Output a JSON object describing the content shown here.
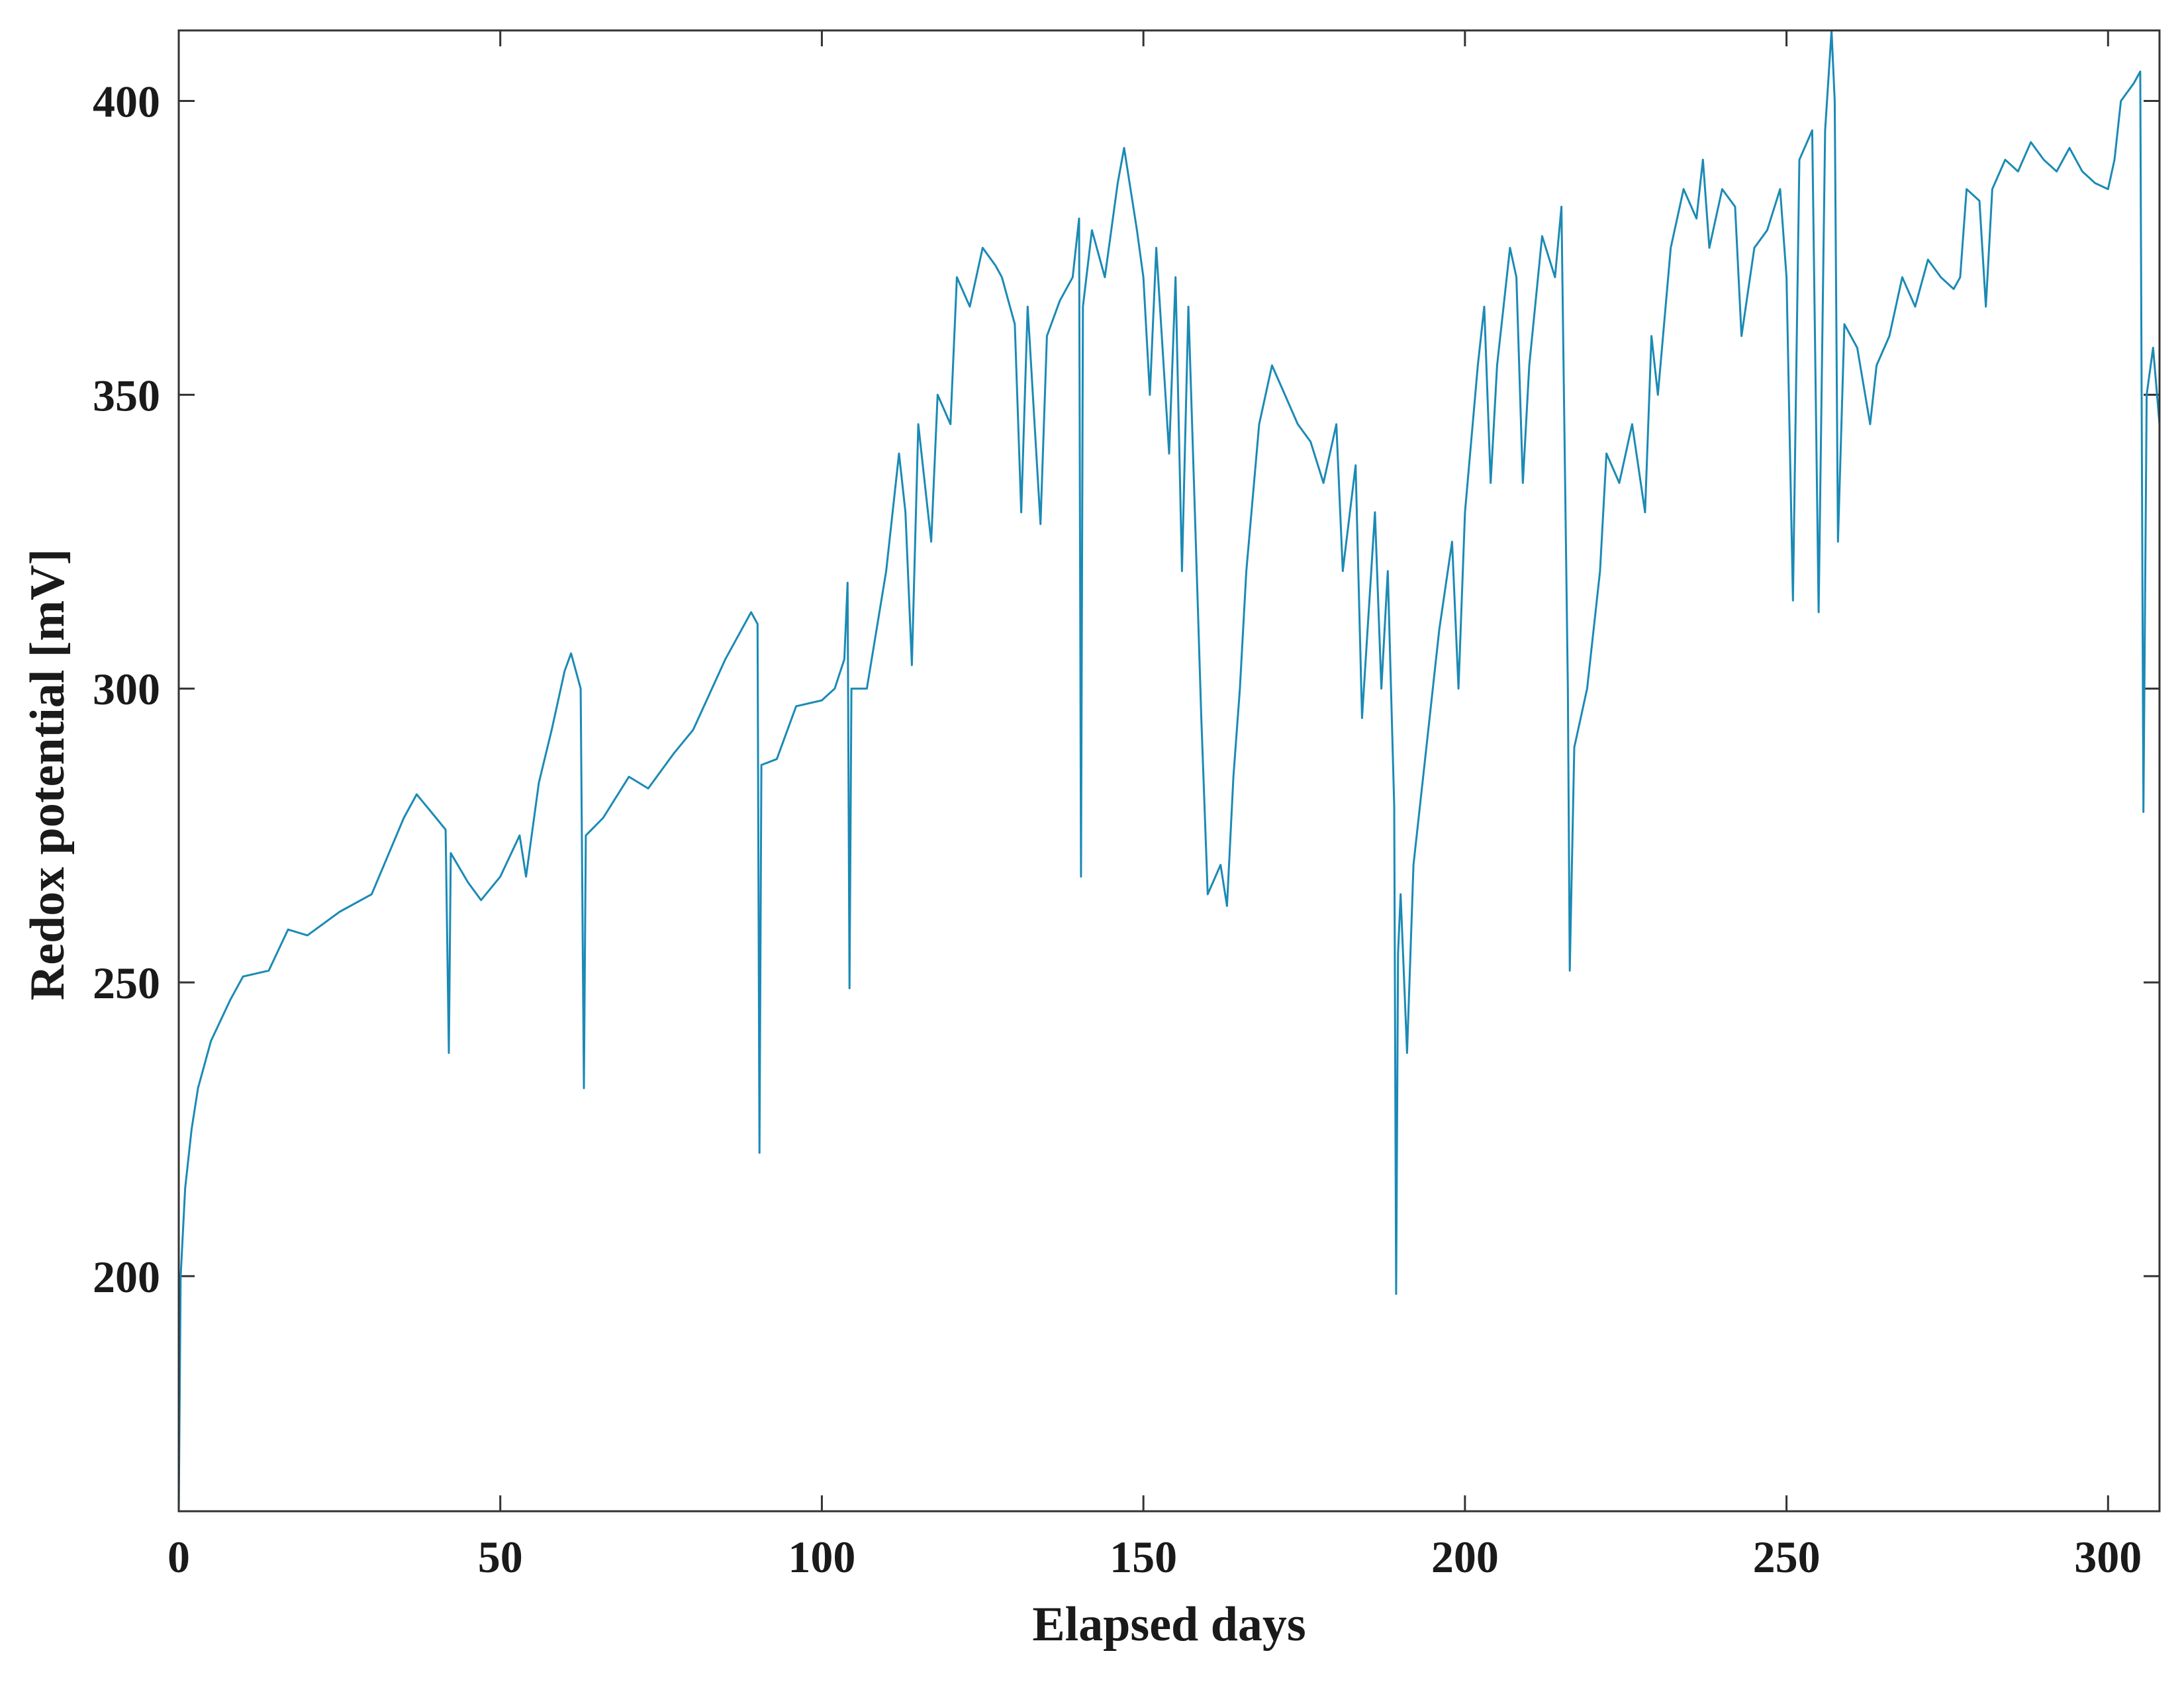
{
  "chart_data": {
    "type": "line",
    "xlabel": "Elapsed days",
    "ylabel": "Redox potential [mV]",
    "xlim": [
      0,
      308
    ],
    "ylim": [
      160,
      412
    ],
    "xticks": [
      0,
      50,
      100,
      150,
      200,
      250,
      300
    ],
    "yticks": [
      200,
      250,
      300,
      350,
      400
    ],
    "grid": false,
    "x": [
      0,
      0.3,
      1,
      2,
      3,
      5,
      8,
      10,
      14,
      17,
      20,
      25,
      30,
      35,
      37,
      40,
      41.5,
      42,
      42.3,
      45,
      47,
      50,
      53,
      54,
      56,
      58,
      60,
      61,
      62,
      62.5,
      63,
      63.3,
      66,
      70,
      73,
      77,
      80,
      85,
      89,
      90,
      90.3,
      90.6,
      93,
      96,
      100,
      102,
      103.5,
      104,
      104.3,
      104.6,
      107,
      110,
      112,
      113,
      114,
      115,
      117,
      118,
      120,
      121,
      123,
      125,
      127,
      128,
      130,
      131,
      132,
      134,
      135,
      137,
      139,
      140,
      140.3,
      140.6,
      142,
      144,
      146,
      147,
      149,
      150,
      151,
      152,
      154,
      155,
      156,
      157,
      158,
      159,
      160,
      162,
      163,
      164,
      165,
      166,
      168,
      170,
      172,
      174,
      176,
      178,
      180,
      181,
      183,
      184,
      186,
      187,
      188,
      189,
      189.3,
      189.6,
      190,
      191,
      192,
      194,
      196,
      198,
      199,
      200,
      202,
      203,
      204,
      205,
      207,
      208,
      209,
      210,
      212,
      214,
      215,
      216,
      216.3,
      217,
      219,
      221,
      222,
      224,
      226,
      228,
      229,
      230,
      232,
      234,
      236,
      237,
      238,
      240,
      242,
      243,
      245,
      247,
      249,
      250,
      251,
      252,
      254,
      255,
      256,
      257,
      257.5,
      258,
      259,
      261,
      263,
      264,
      266,
      268,
      270,
      272,
      274,
      276,
      277,
      278,
      280,
      281,
      282,
      284,
      286,
      288,
      290,
      292,
      294,
      296,
      298,
      300,
      301,
      302,
      304,
      305,
      305.5,
      306,
      307,
      308
    ],
    "series": [
      {
        "color": "#1b8ab5",
        "values": [
          160,
          200,
          215,
          225,
          232,
          240,
          247,
          251,
          252,
          259,
          258,
          262,
          265,
          278,
          282,
          278,
          276,
          238,
          272,
          267,
          264,
          268,
          275,
          268,
          284,
          293,
          303,
          306,
          302,
          300,
          232,
          275,
          278,
          285,
          283,
          289,
          293,
          305,
          313,
          311,
          221,
          287,
          288,
          297,
          298,
          300,
          305,
          318,
          249,
          300,
          300,
          320,
          340,
          330,
          304,
          345,
          325,
          350,
          345,
          370,
          365,
          375,
          372,
          370,
          362,
          330,
          365,
          328,
          360,
          366,
          370,
          380,
          268,
          365,
          378,
          370,
          386,
          392,
          378,
          370,
          350,
          375,
          340,
          370,
          320,
          365,
          330,
          295,
          265,
          270,
          263,
          285,
          300,
          320,
          345,
          355,
          350,
          345,
          342,
          335,
          345,
          320,
          338,
          295,
          330,
          300,
          320,
          280,
          197,
          255,
          265,
          238,
          270,
          290,
          310,
          325,
          300,
          330,
          355,
          365,
          335,
          355,
          375,
          370,
          335,
          355,
          377,
          370,
          382,
          300,
          252,
          290,
          300,
          320,
          340,
          335,
          345,
          330,
          360,
          350,
          375,
          385,
          380,
          390,
          375,
          385,
          382,
          360,
          375,
          378,
          385,
          370,
          315,
          390,
          395,
          313,
          395,
          412,
          400,
          325,
          362,
          358,
          345,
          355,
          360,
          370,
          365,
          373,
          370,
          368,
          370,
          385,
          383,
          365,
          385,
          390,
          388,
          393,
          390,
          388,
          392,
          388,
          386,
          385,
          390,
          400,
          403,
          405,
          279,
          350,
          358,
          345
        ]
      }
    ]
  }
}
